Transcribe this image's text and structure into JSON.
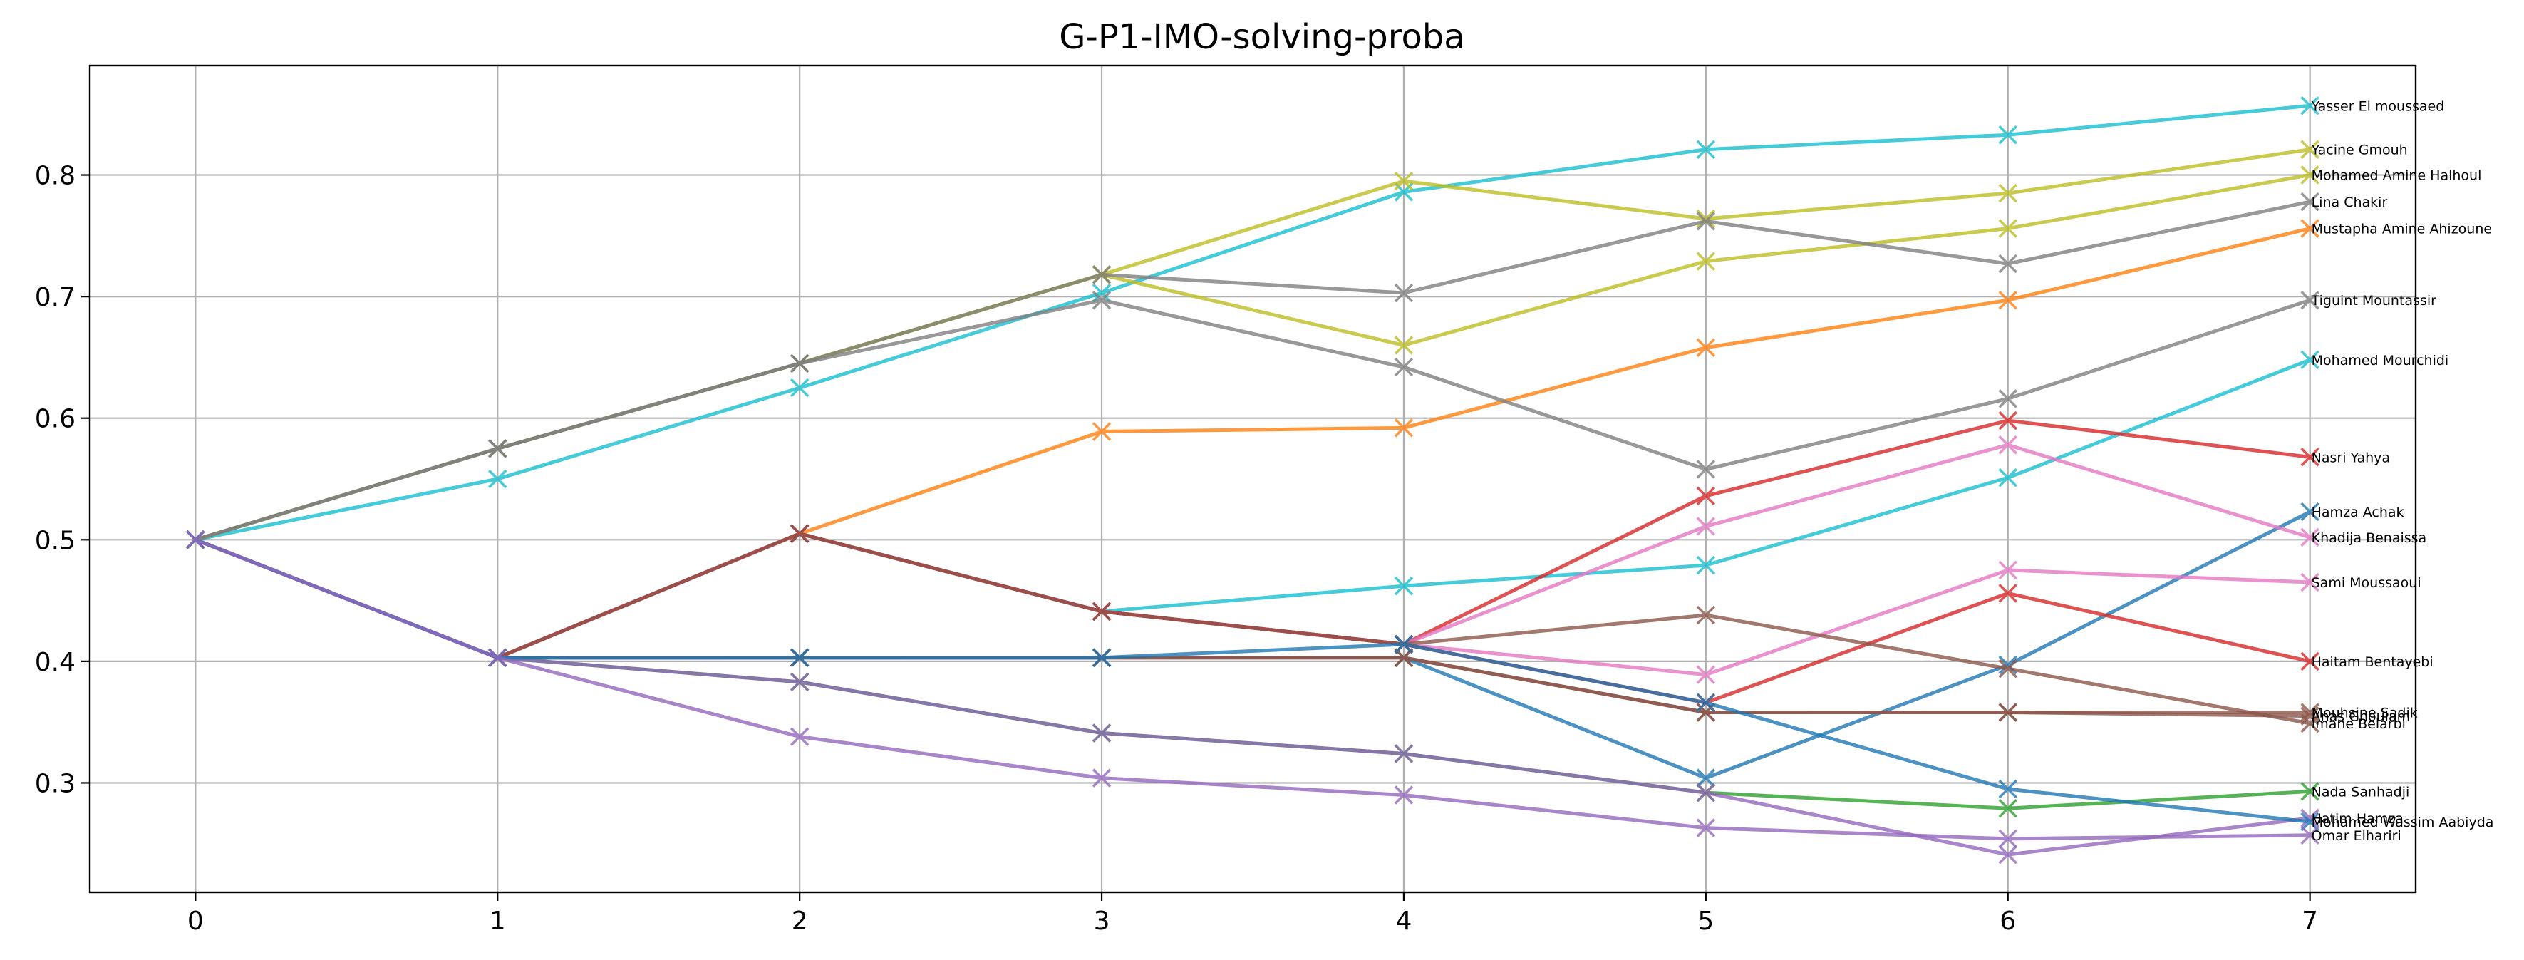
{
  "chart_data": {
    "type": "line",
    "title": "G-P1-IMO-solving-proba",
    "xlabel": "",
    "ylabel": "",
    "xlim": [
      -0.35,
      7.35
    ],
    "ylim": [
      0.21,
      0.89
    ],
    "xticks": [
      0,
      1,
      2,
      3,
      4,
      5,
      6,
      7
    ],
    "yticks": [
      0.3,
      0.4,
      0.5,
      0.6,
      0.7,
      0.8
    ],
    "grid": true,
    "marker": "x",
    "x": [
      0,
      1,
      2,
      3,
      4,
      5,
      6,
      7
    ],
    "series": [
      {
        "name": "Yasser El moussaed",
        "color": "#17becf",
        "values": [
          0.5,
          0.55,
          0.625,
          0.703,
          0.786,
          0.821,
          0.833,
          0.857
        ]
      },
      {
        "name": "Yacine Gmouh",
        "color": "#bcbd22",
        "values": [
          0.5,
          0.575,
          0.645,
          0.718,
          0.795,
          0.764,
          0.785,
          0.821
        ]
      },
      {
        "name": "Mohamed Amine Halhoul",
        "color": "#bcbd22",
        "values": [
          0.5,
          0.575,
          0.645,
          0.718,
          0.66,
          0.729,
          0.756,
          0.8
        ]
      },
      {
        "name": "Lina Chakir",
        "color": "#7f7f7f",
        "values": [
          0.5,
          0.575,
          0.645,
          0.718,
          0.703,
          0.762,
          0.727,
          0.778
        ]
      },
      {
        "name": "Mustapha Amine Ahizoune",
        "color": "#ff7f0e",
        "values": [
          0.5,
          0.403,
          0.505,
          0.589,
          0.592,
          0.658,
          0.697,
          0.756
        ]
      },
      {
        "name": "Tiguint Mountassir",
        "color": "#7f7f7f",
        "values": [
          0.5,
          0.575,
          0.645,
          0.697,
          0.642,
          0.558,
          0.616,
          0.697
        ]
      },
      {
        "name": "Mohamed Mourchidi",
        "color": "#17becf",
        "values": [
          0.5,
          0.403,
          0.505,
          0.441,
          0.462,
          0.479,
          0.551,
          0.648
        ]
      },
      {
        "name": "Nasri Yahya",
        "color": "#d62728",
        "values": [
          0.5,
          0.403,
          0.505,
          0.441,
          0.414,
          0.536,
          0.598,
          0.568
        ]
      },
      {
        "name": "Hamza Achak",
        "color": "#1f77b4",
        "values": [
          0.5,
          0.403,
          0.403,
          0.403,
          0.403,
          0.304,
          0.397,
          0.523
        ]
      },
      {
        "name": "Khadija Benaissa",
        "color": "#e377c2",
        "values": [
          0.5,
          0.403,
          0.505,
          0.441,
          0.414,
          0.511,
          0.578,
          0.502
        ]
      },
      {
        "name": "Sami Moussaoui",
        "color": "#e377c2",
        "values": [
          0.5,
          0.403,
          0.505,
          0.441,
          0.414,
          0.389,
          0.475,
          0.465
        ]
      },
      {
        "name": "Haitam Bentayebi",
        "color": "#d62728",
        "values": [
          0.5,
          0.403,
          0.505,
          0.441,
          0.414,
          0.366,
          0.456,
          0.4
        ]
      },
      {
        "name": "Mouhsine Sadik",
        "color": "#8c564b",
        "values": [
          0.5,
          0.403,
          0.403,
          0.403,
          0.403,
          0.358,
          0.358,
          0.358
        ]
      },
      {
        "name": "Anas Ghoulam",
        "color": "#8c564b",
        "values": [
          0.5,
          0.403,
          0.403,
          0.403,
          0.403,
          0.358,
          0.358,
          0.355
        ]
      },
      {
        "name": "Imane Belarbi",
        "color": "#8c564b",
        "values": [
          0.5,
          0.403,
          0.505,
          0.441,
          0.414,
          0.438,
          0.394,
          0.349
        ]
      },
      {
        "name": "Nada Sanhadji",
        "color": "#2ca02c",
        "values": [
          0.5,
          0.403,
          0.383,
          0.341,
          0.324,
          0.292,
          0.279,
          0.293
        ]
      },
      {
        "name": "Hatim Hamza",
        "color": "#9467bd",
        "values": [
          0.5,
          0.403,
          0.383,
          0.341,
          0.324,
          0.292,
          0.241,
          0.271
        ]
      },
      {
        "name": "Mohamed Wassim Aabiyda",
        "color": "#1f77b4",
        "values": [
          0.5,
          0.403,
          0.403,
          0.403,
          0.414,
          0.366,
          0.295,
          0.268
        ]
      },
      {
        "name": "Omar Elhariri",
        "color": "#9467bd",
        "values": [
          0.5,
          0.403,
          0.338,
          0.304,
          0.29,
          0.263,
          0.254,
          0.257
        ]
      }
    ]
  }
}
